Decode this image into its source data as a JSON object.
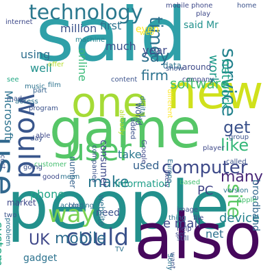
{
  "words": [
    {
      "text": "said",
      "color": "#2fa0a8",
      "rot": 0
    },
    {
      "text": "people",
      "color": "#23908c",
      "rot": 0
    },
    {
      "text": "game",
      "color": "#56c667",
      "rot": 0
    },
    {
      "text": "one",
      "color": "#a5db36",
      "rot": 0
    },
    {
      "text": "new",
      "color": "#d0e11c",
      "rot": 0
    },
    {
      "text": "also",
      "color": "#46085c",
      "rot": 0
    },
    {
      "text": "would",
      "color": "#39568c",
      "rot": 90
    },
    {
      "text": "use",
      "color": "#31688e",
      "rot": 90
    },
    {
      "text": "user",
      "color": "#52c569",
      "rot": 0
    },
    {
      "text": "technology",
      "color": "#2a788e",
      "rot": 0
    },
    {
      "text": "could",
      "color": "#3b528b",
      "rot": 0
    },
    {
      "text": "service",
      "color": "#25838e",
      "rot": 90
    },
    {
      "text": "mobile",
      "color": "#2f6c8e",
      "rot": 0
    },
    {
      "text": "computer",
      "color": "#3e4a89",
      "rot": 0
    },
    {
      "text": "time",
      "color": "#2c728e",
      "rot": 90
    },
    {
      "text": "way",
      "color": "#7ad151",
      "rot": 0
    },
    {
      "text": "make",
      "color": "#2a788e",
      "rot": 0
    },
    {
      "text": "like",
      "color": "#35b779",
      "rot": 0
    },
    {
      "text": "get",
      "color": "#3b528b",
      "rot": 0
    },
    {
      "text": "software",
      "color": "#44bf70",
      "rot": 0
    },
    {
      "text": "say",
      "color": "#2d708e",
      "rot": 0
    },
    {
      "text": "many",
      "color": "#482677",
      "rot": 0
    },
    {
      "text": "site",
      "color": "#5cc863",
      "rot": 90
    },
    {
      "text": "UK",
      "color": "#3f4889",
      "rot": 0
    },
    {
      "text": "network",
      "color": "#1fa287",
      "rot": 90
    },
    {
      "text": "work",
      "color": "#1f9a8a",
      "rot": 90
    },
    {
      "text": "PC",
      "color": "#414487",
      "rot": 0
    },
    {
      "text": "net",
      "color": "#2d708e",
      "rot": 0
    },
    {
      "text": "e mail",
      "color": "#3e4989",
      "rot": 0
    },
    {
      "text": "device",
      "color": "#26828e",
      "rot": 0
    },
    {
      "text": "firm",
      "color": "#2c728e",
      "rot": 0
    },
    {
      "text": "online",
      "color": "#38b977",
      "rot": 90
    },
    {
      "text": "used",
      "color": "#34618d",
      "rot": 0
    },
    {
      "text": "phone",
      "color": "#20a486",
      "rot": 0
    },
    {
      "text": "million",
      "color": "#3b528b",
      "rot": 0
    },
    {
      "text": "first",
      "color": "#2c728e",
      "rot": 0
    },
    {
      "text": "year",
      "color": "#3e4a89",
      "rot": 0
    },
    {
      "text": "much",
      "color": "#3b528b",
      "rot": 0
    },
    {
      "text": "using",
      "color": "#2e6f8e",
      "rot": 0
    },
    {
      "text": "well",
      "color": "#21918c",
      "rot": 0
    },
    {
      "text": "take",
      "color": "#2a788e",
      "rot": 0
    },
    {
      "text": "information",
      "color": "#1f9e89",
      "rot": 0
    },
    {
      "text": "consumer",
      "color": "#3e4989",
      "rot": 90
    },
    {
      "text": "need",
      "color": "#3b528b",
      "rot": 0
    },
    {
      "text": "system",
      "color": "#22a884",
      "rot": 90
    },
    {
      "text": "Microsoft",
      "color": "#2c728e",
      "rot": 90
    },
    {
      "text": "gadget",
      "color": "#2c728e",
      "rot": 0
    },
    {
      "text": "market",
      "color": "#3f4889",
      "rot": 0
    },
    {
      "text": "broadband",
      "color": "#31688e",
      "rot": 90
    },
    {
      "text": "website",
      "color": "#2c728e",
      "rot": 90
    },
    {
      "text": "said Mr",
      "color": "#21918c",
      "rot": 0
    },
    {
      "text": "even",
      "color": "#fde725",
      "rot": 0
    },
    {
      "text": "data",
      "color": "#2c728e",
      "rot": 0
    },
    {
      "text": "number",
      "color": "#34618d",
      "rot": 90
    },
    {
      "text": "world",
      "color": "#3b528b",
      "rot": 90
    },
    {
      "text": "around",
      "color": "#3e4a89",
      "rot": 0
    },
    {
      "text": "show",
      "color": "#3b528b",
      "rot": 0
    },
    {
      "text": "mobile phone",
      "color": "#3e4989",
      "rot": 0
    },
    {
      "text": "home",
      "color": "#3b528b",
      "rot": 0
    },
    {
      "text": "play",
      "color": "#3e4989",
      "rot": 0
    },
    {
      "text": "music",
      "color": "#2c728e",
      "rot": 0
    },
    {
      "text": "content",
      "color": "#3b528b",
      "rot": 0
    },
    {
      "text": "company",
      "color": "#3e4989",
      "rot": 0
    },
    {
      "text": "machine",
      "color": "#26828e",
      "rot": 0
    },
    {
      "text": "offer",
      "color": "#b5de2b",
      "rot": 0
    },
    {
      "text": "internet",
      "color": "#3e4989",
      "rot": 0
    },
    {
      "text": "film",
      "color": "#2c728e",
      "rot": 0
    },
    {
      "text": "see",
      "color": "#22a884",
      "rot": 0
    },
    {
      "text": "made",
      "color": "#3b528b",
      "rot": 0
    },
    {
      "text": "access",
      "color": "#2c728e",
      "rot": 0
    },
    {
      "text": "program",
      "color": "#3b528b",
      "rot": 0
    },
    {
      "text": "part",
      "color": "#34618d",
      "rot": 0
    },
    {
      "text": "added",
      "color": "#3b528b",
      "rot": 90
    },
    {
      "text": "digital",
      "color": "#2c728e",
      "rot": 90
    },
    {
      "text": "Google",
      "color": "#3e4989",
      "rot": 90
    },
    {
      "text": "Europe",
      "color": "#2c728e",
      "rot": 90
    },
    {
      "text": "different",
      "color": "#fde725",
      "rot": 90
    },
    {
      "text": "group",
      "color": "#3b528b",
      "rot": 0
    },
    {
      "text": "player",
      "color": "#3e4989",
      "rot": 0
    },
    {
      "text": "called",
      "color": "#3b528b",
      "rot": 0
    },
    {
      "text": "version",
      "color": "#2c728e",
      "rot": 0
    },
    {
      "text": "Apple",
      "color": "#44bf70",
      "rot": 0
    },
    {
      "text": "file",
      "color": "#3e4989",
      "rot": 0
    },
    {
      "text": "still",
      "color": "#3b528b",
      "rot": 0
    },
    {
      "text": "help",
      "color": "#3e4989",
      "rot": 0
    },
    {
      "text": "thing",
      "color": "#2c728e",
      "rot": 0
    },
    {
      "text": "image",
      "color": "#3b528b",
      "rot": 0
    },
    {
      "text": "set",
      "color": "#3e4989",
      "rot": 0
    },
    {
      "text": "want",
      "color": "#3b528b",
      "rot": 90
    },
    {
      "text": "Sony",
      "color": "#2c728e",
      "rot": 90
    },
    {
      "text": "based",
      "color": "#44bf70",
      "rot": 0
    },
    {
      "text": "likely",
      "color": "#3e4989",
      "rot": 90
    },
    {
      "text": "companies",
      "color": "#3b528b",
      "rot": 90
    },
    {
      "text": "already",
      "color": "#b5de2b",
      "rot": 90
    },
    {
      "text": "day",
      "color": "#3b528b",
      "rot": 0
    },
    {
      "text": "able",
      "color": "#3e4989",
      "rot": 0
    },
    {
      "text": "cost",
      "color": "#3b528b",
      "rot": 90
    },
    {
      "text": "customer",
      "color": "#44bf70",
      "rot": 0
    },
    {
      "text": "going",
      "color": "#3b528b",
      "rot": 0
    },
    {
      "text": "good",
      "color": "#3e4989",
      "rot": 0
    },
    {
      "text": "mean",
      "color": "#2c728e",
      "rot": 0
    },
    {
      "text": "blog",
      "color": "#3b528b",
      "rot": 0
    },
    {
      "text": "according",
      "color": "#2c728e",
      "rot": 0
    },
    {
      "text": "two",
      "color": "#3b528b",
      "rot": 0
    },
    {
      "text": "problem",
      "color": "#2c728e",
      "rot": 90
    },
    {
      "text": "TV",
      "color": "#2c728e",
      "rot": 0
    },
    {
      "text": "web",
      "color": "#fde725",
      "rot": 0
    }
  ]
}
